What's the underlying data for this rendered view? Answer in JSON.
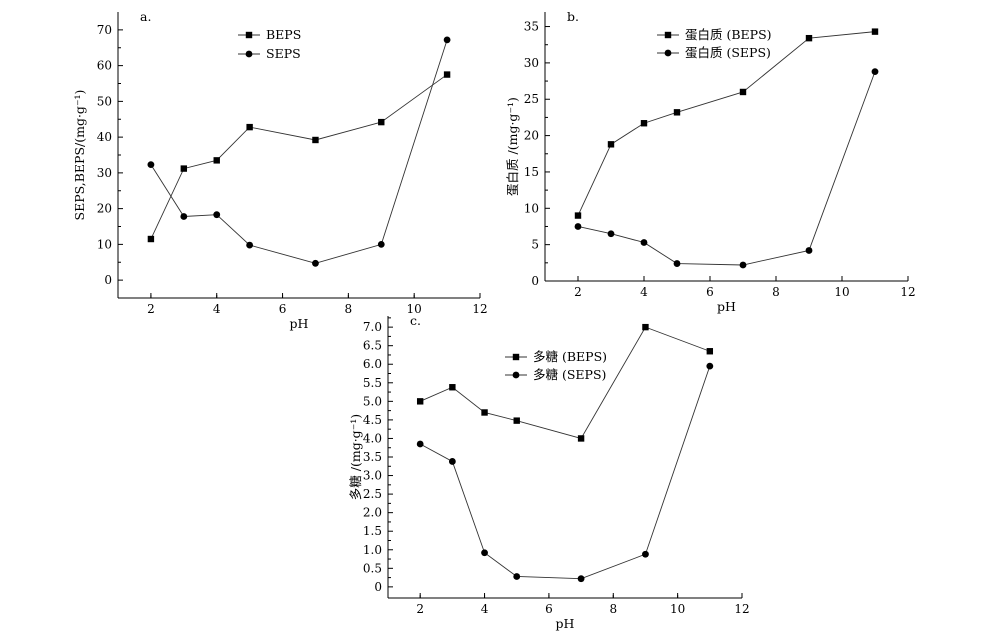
{
  "chart_data": [
    {
      "id": "a",
      "type": "line",
      "panel_label": "a.",
      "title": "",
      "xlabel": "pH",
      "ylabel": "SEPS,BEPS/(mg·g⁻¹)",
      "xlim": [
        1,
        12
      ],
      "ylim": [
        -5,
        75
      ],
      "xticks": [
        2,
        4,
        6,
        8,
        10,
        12
      ],
      "yticks": [
        0,
        10,
        20,
        30,
        40,
        50,
        60,
        70
      ],
      "legend_position": "top-center",
      "series": [
        {
          "name": "BEPS",
          "marker": "square",
          "x": [
            2,
            3,
            4,
            5,
            7,
            9,
            11
          ],
          "y": [
            11.5,
            31.2,
            33.5,
            42.8,
            39.2,
            44.2,
            57.5
          ]
        },
        {
          "name": "SEPS",
          "marker": "circle",
          "x": [
            2,
            3,
            4,
            5,
            7,
            9,
            11
          ],
          "y": [
            32.3,
            17.8,
            18.3,
            9.8,
            4.7,
            10.0,
            67.2
          ]
        }
      ]
    },
    {
      "id": "b",
      "type": "line",
      "panel_label": "b.",
      "title": "",
      "xlabel": "pH",
      "ylabel": "蛋白质 /(mg·g⁻¹)",
      "xlim": [
        1,
        12
      ],
      "ylim": [
        0,
        37
      ],
      "xticks": [
        2,
        4,
        6,
        8,
        10,
        12
      ],
      "yticks": [
        0,
        5,
        10,
        15,
        20,
        25,
        30,
        35
      ],
      "legend_position": "top-right",
      "series": [
        {
          "name": "蛋白质 (BEPS)",
          "marker": "square",
          "x": [
            2,
            3,
            4,
            5,
            7,
            9,
            11
          ],
          "y": [
            9.0,
            18.8,
            21.7,
            23.2,
            26.0,
            33.4,
            34.3
          ]
        },
        {
          "name": "蛋白质 (SEPS)",
          "marker": "circle",
          "x": [
            2,
            3,
            4,
            5,
            7,
            9,
            11
          ],
          "y": [
            7.5,
            6.5,
            5.3,
            2.4,
            2.2,
            4.2,
            28.8
          ]
        }
      ]
    },
    {
      "id": "c",
      "type": "line",
      "panel_label": "c.",
      "title": "",
      "xlabel": "pH",
      "ylabel": "多糖 /(mg·g⁻¹)",
      "xlim": [
        1,
        12
      ],
      "ylim": [
        -0.3,
        7.3
      ],
      "xticks": [
        2,
        4,
        6,
        8,
        10,
        12
      ],
      "yticks": [
        0,
        0.5,
        1.0,
        1.5,
        2.0,
        2.5,
        3.0,
        3.5,
        4.0,
        4.5,
        5.0,
        5.5,
        6.0,
        6.5,
        7.0
      ],
      "ytick_labels": [
        "0",
        "0.5",
        "1.0",
        "1.5",
        "2.0",
        "2.5",
        "3.0",
        "3.5",
        "4.0",
        "4.5",
        "5.0",
        "5.5",
        "6.0",
        "6.5",
        "7.0"
      ],
      "legend_position": "top-left",
      "series": [
        {
          "name": "多糖 (BEPS)",
          "marker": "square",
          "x": [
            2,
            3,
            4,
            5,
            7,
            9,
            11
          ],
          "y": [
            5.0,
            5.38,
            4.7,
            4.48,
            4.0,
            7.0,
            6.35
          ]
        },
        {
          "name": "多糖 (SEPS)",
          "marker": "circle",
          "x": [
            2,
            3,
            4,
            5,
            7,
            9,
            11
          ],
          "y": [
            3.85,
            3.38,
            0.92,
            0.28,
            0.22,
            0.88,
            5.95
          ]
        }
      ]
    }
  ]
}
